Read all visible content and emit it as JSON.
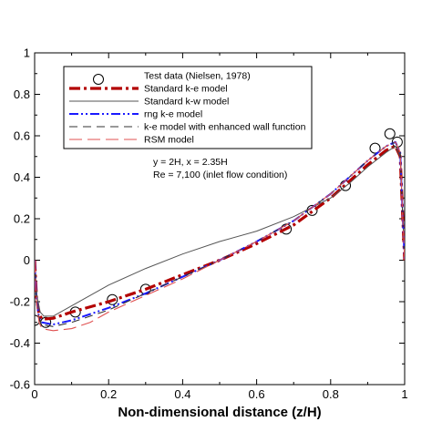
{
  "chart_data": {
    "type": "line",
    "title": "",
    "xlabel": "Non-dimensional distance (z/H)",
    "ylabel": "",
    "xlim": [
      0,
      1
    ],
    "ylim": [
      -0.6,
      1
    ],
    "x_ticks": [
      "0",
      "0.2",
      "0.4",
      "0.6",
      "0.8",
      "1"
    ],
    "y_ticks": [
      "-0.6",
      "-0.4",
      "-0.2",
      "0",
      "0.2",
      "0.4",
      "0.6",
      "0.8",
      "1"
    ],
    "grid": false,
    "legend_position": "top-left",
    "annotations": [
      "y = 2H, x = 2.35H",
      "Re = 7,100 (inlet flow condition)"
    ],
    "series": [
      {
        "name": "Test data (Nielsen, 1978)",
        "style": "markers",
        "color": "#000000",
        "x": [
          0.0,
          0.03,
          0.11,
          0.21,
          0.3,
          0.68,
          0.75,
          0.84,
          0.92,
          0.96,
          0.98
        ],
        "y": [
          -0.29,
          -0.3,
          -0.25,
          -0.19,
          -0.14,
          0.15,
          0.24,
          0.36,
          0.54,
          0.61,
          0.57
        ]
      },
      {
        "name": "Standard k-e model",
        "style": "dashdot-thick",
        "color": "#b30000",
        "x": [
          0.0,
          0.005,
          0.012,
          0.02,
          0.05,
          0.1,
          0.2,
          0.3,
          0.4,
          0.5,
          0.6,
          0.7,
          0.8,
          0.85,
          0.9,
          0.95,
          0.975,
          0.988,
          0.995,
          1.0
        ],
        "y": [
          0.0,
          -0.18,
          -0.26,
          -0.285,
          -0.28,
          -0.25,
          -0.2,
          -0.14,
          -0.07,
          0.0,
          0.08,
          0.17,
          0.3,
          0.38,
          0.46,
          0.53,
          0.55,
          0.5,
          0.2,
          0.0
        ]
      },
      {
        "name": "Standard k-w model",
        "style": "solid-thin",
        "color": "#555555",
        "x": [
          0.0,
          0.006,
          0.015,
          0.025,
          0.05,
          0.1,
          0.2,
          0.3,
          0.4,
          0.5,
          0.6,
          0.7,
          0.8,
          0.85,
          0.9,
          0.95,
          0.975,
          0.988,
          0.995,
          1.0
        ],
        "y": [
          0.0,
          -0.17,
          -0.25,
          -0.27,
          -0.27,
          -0.22,
          -0.12,
          -0.04,
          0.03,
          0.09,
          0.14,
          0.21,
          0.3,
          0.37,
          0.45,
          0.52,
          0.55,
          0.5,
          0.2,
          0.0
        ]
      },
      {
        "name": "rng k-e model",
        "style": "dashdotdot",
        "color": "#1a1aff",
        "x": [
          0.0,
          0.005,
          0.012,
          0.02,
          0.05,
          0.1,
          0.2,
          0.3,
          0.4,
          0.5,
          0.6,
          0.7,
          0.8,
          0.85,
          0.9,
          0.95,
          0.975,
          0.988,
          0.995,
          1.0
        ],
        "y": [
          0.0,
          -0.19,
          -0.28,
          -0.3,
          -0.31,
          -0.29,
          -0.23,
          -0.16,
          -0.08,
          0.0,
          0.09,
          0.19,
          0.32,
          0.4,
          0.48,
          0.55,
          0.57,
          0.52,
          0.2,
          0.0
        ]
      },
      {
        "name": "k-e model with enhanced wall function",
        "style": "dashed",
        "color": "#333333",
        "x": [
          0.0,
          0.005,
          0.012,
          0.02,
          0.05,
          0.1,
          0.2,
          0.3,
          0.4,
          0.5,
          0.6,
          0.7,
          0.8,
          0.85,
          0.9,
          0.95,
          0.975,
          0.988,
          0.995,
          1.0
        ],
        "y": [
          0.0,
          -0.19,
          -0.28,
          -0.31,
          -0.32,
          -0.3,
          -0.24,
          -0.16,
          -0.08,
          0.0,
          0.09,
          0.19,
          0.32,
          0.4,
          0.48,
          0.55,
          0.57,
          0.52,
          0.2,
          0.0
        ]
      },
      {
        "name": "RSM model",
        "style": "longdash",
        "color": "#e05050",
        "x": [
          0.0,
          0.005,
          0.012,
          0.02,
          0.05,
          0.1,
          0.15,
          0.2,
          0.3,
          0.4,
          0.5,
          0.6,
          0.7,
          0.8,
          0.85,
          0.9,
          0.95,
          0.975,
          0.988,
          0.995,
          1.0
        ],
        "y": [
          0.0,
          -0.2,
          -0.3,
          -0.33,
          -0.34,
          -0.33,
          -0.3,
          -0.25,
          -0.17,
          -0.09,
          0.0,
          0.09,
          0.19,
          0.32,
          0.4,
          0.48,
          0.55,
          0.57,
          0.52,
          0.2,
          0.0
        ]
      }
    ]
  }
}
